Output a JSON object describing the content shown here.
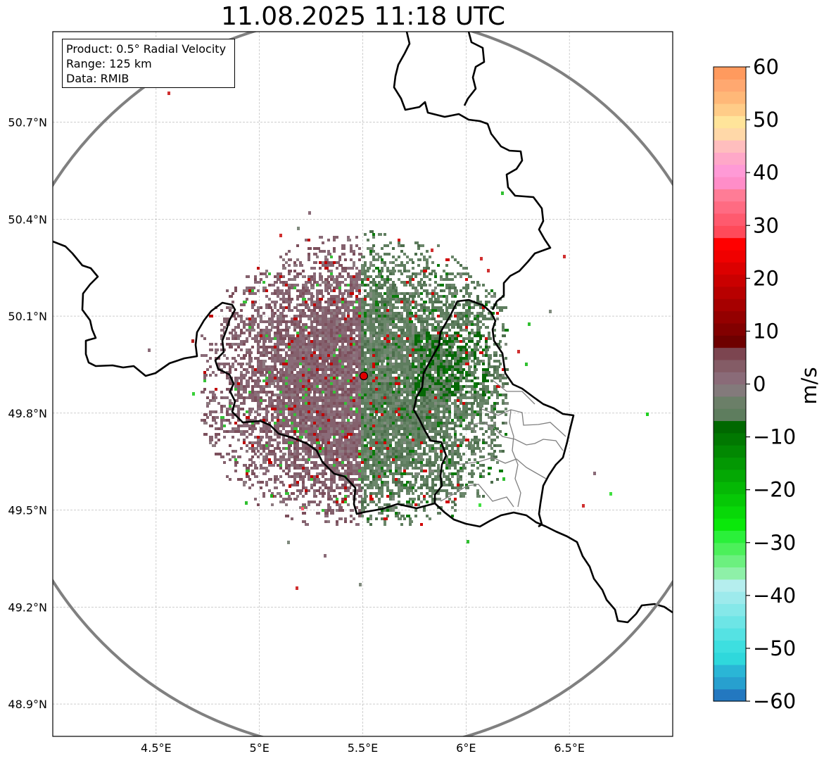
{
  "title": "11.08.2025 11:18 UTC",
  "info_box": {
    "line1": "Product: 0.5° Radial Velocity",
    "line2": "Range: 125 km",
    "line3": "Data: RMIB"
  },
  "map": {
    "lon_range": [
      4.0,
      7.0
    ],
    "lat_range": [
      48.8,
      50.98
    ],
    "x_ticks": [
      {
        "value": 4.5,
        "label": "4.5°E"
      },
      {
        "value": 5.0,
        "label": "5°E"
      },
      {
        "value": 5.5,
        "label": "5.5°E"
      },
      {
        "value": 6.0,
        "label": "6°E"
      },
      {
        "value": 6.5,
        "label": "6.5°E"
      }
    ],
    "y_ticks": [
      {
        "value": 48.9,
        "label": "48.9°N"
      },
      {
        "value": 49.2,
        "label": "49.2°N"
      },
      {
        "value": 49.5,
        "label": "49.5°N"
      },
      {
        "value": 49.8,
        "label": "49.8°N"
      },
      {
        "value": 50.1,
        "label": "50.1°N"
      },
      {
        "value": 50.4,
        "label": "50.4°N"
      },
      {
        "value": 50.7,
        "label": "50.7°N"
      }
    ],
    "gridlines": true,
    "radar_site": {
      "lon": 5.505,
      "lat": 49.915,
      "color": "#e00000"
    },
    "range_ring_color": "#808080",
    "border_color": "#000000",
    "admin_border_color": "#7f7f7f"
  },
  "colorbar": {
    "label": "m/s",
    "min": -60,
    "max": 60,
    "ticks": [
      {
        "value": 60,
        "label": "60"
      },
      {
        "value": 50,
        "label": "50"
      },
      {
        "value": 40,
        "label": "40"
      },
      {
        "value": 30,
        "label": "30"
      },
      {
        "value": 20,
        "label": "20"
      },
      {
        "value": 10,
        "label": "10"
      },
      {
        "value": 0,
        "label": "0"
      },
      {
        "value": -10,
        "label": "−10"
      },
      {
        "value": -20,
        "label": "−20"
      },
      {
        "value": -30,
        "label": "−30"
      },
      {
        "value": -40,
        "label": "−40"
      },
      {
        "value": -50,
        "label": "−50"
      },
      {
        "value": -60,
        "label": "−60"
      }
    ],
    "colors": [
      "#2378c0",
      "#27a0cf",
      "#2ab6d6",
      "#2fd8dc",
      "#3ddfe0",
      "#55e2e3",
      "#6de5e6",
      "#85e8e9",
      "#9deaec",
      "#b5eeee",
      "#8ef0a8",
      "#6cf07f",
      "#4cf05a",
      "#2af03a",
      "#0ae80a",
      "#08d808",
      "#06c806",
      "#05b805",
      "#04a804",
      "#039803",
      "#028802",
      "#017801",
      "#006800",
      "#5e7d5e",
      "#6b7f68",
      "#837a7b",
      "#8a6b78",
      "#845c66",
      "#7c4550",
      "#6e0000",
      "#820000",
      "#940000",
      "#a60000",
      "#b80000",
      "#ca0000",
      "#dc0000",
      "#f00000",
      "#ff0000",
      "#ff4a5a",
      "#ff5a6e",
      "#ff6b82",
      "#ff7c96",
      "#ff8dc8",
      "#ff9ad6",
      "#ffa8c8",
      "#ffbebe",
      "#ffd8a8",
      "#ffe49a",
      "#ffcc88",
      "#ffb878",
      "#ffa870",
      "#ff9a5e"
    ]
  }
}
